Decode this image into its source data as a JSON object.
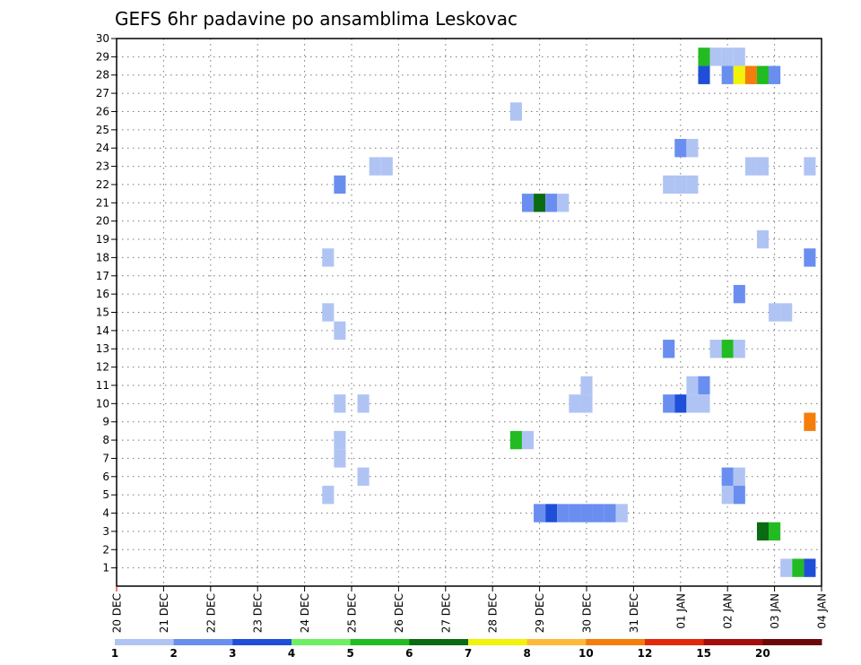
{
  "chart_data": {
    "type": "heatmap",
    "title": "GEFS 6hr padavine po ansamblima Leskovac",
    "xlabel": "",
    "ylabel": "",
    "x_tick_labels": [
      "20 DEC",
      "21 DEC",
      "22 DEC",
      "23 DEC",
      "24 DEC",
      "25 DEC",
      "26 DEC",
      "27 DEC",
      "28 DEC",
      "29 DEC",
      "30 DEC",
      "31 DEC",
      "01 JAN",
      "02 JAN",
      "03 JAN",
      "04 JAN"
    ],
    "y_tick_labels": [
      "1",
      "2",
      "3",
      "4",
      "5",
      "6",
      "7",
      "8",
      "9",
      "10",
      "11",
      "12",
      "13",
      "14",
      "15",
      "16",
      "17",
      "18",
      "19",
      "20",
      "21",
      "22",
      "23",
      "24",
      "25",
      "26",
      "27",
      "28",
      "29",
      "30"
    ],
    "xlim": [
      "20 DEC",
      "04 JAN"
    ],
    "ylim": [
      0,
      30
    ],
    "grid": true,
    "time_step": "6hr",
    "colorbar": {
      "labels": [
        "1",
        "2",
        "3",
        "4",
        "5",
        "6",
        "7",
        "8",
        "10",
        "12",
        "15",
        "20"
      ],
      "colors": [
        "#b0c4f4",
        "#6a8ef0",
        "#1f4ed8",
        "#6cf062",
        "#22bb22",
        "#0b6b12",
        "#f2f20a",
        "#fcb93a",
        "#f47d0c",
        "#e22a0a",
        "#a50c0c",
        "#6b0808"
      ],
      "position": "bottom"
    },
    "cells": [
      {
        "member": 29,
        "time": "01 JAN 12Z",
        "value": 5
      },
      {
        "member": 29,
        "time": "01 JAN 18Z",
        "value": 1
      },
      {
        "member": 29,
        "time": "02 JAN 00Z",
        "value": 1
      },
      {
        "member": 29,
        "time": "02 JAN 06Z",
        "value": 1
      },
      {
        "member": 28,
        "time": "01 JAN 12Z",
        "value": 3
      },
      {
        "member": 28,
        "time": "02 JAN 00Z",
        "value": 2
      },
      {
        "member": 28,
        "time": "02 JAN 06Z",
        "value": 7
      },
      {
        "member": 28,
        "time": "02 JAN 12Z",
        "value": 10
      },
      {
        "member": 28,
        "time": "02 JAN 18Z",
        "value": 5
      },
      {
        "member": 28,
        "time": "03 JAN 00Z",
        "value": 2
      },
      {
        "member": 26,
        "time": "28 DEC 12Z",
        "value": 1
      },
      {
        "member": 24,
        "time": "01 JAN 00Z",
        "value": 2
      },
      {
        "member": 24,
        "time": "01 JAN 06Z",
        "value": 1
      },
      {
        "member": 23,
        "time": "25 DEC 12Z",
        "value": 1
      },
      {
        "member": 23,
        "time": "25 DEC 18Z",
        "value": 1
      },
      {
        "member": 23,
        "time": "02 JAN 12Z",
        "value": 1
      },
      {
        "member": 23,
        "time": "02 JAN 18Z",
        "value": 1
      },
      {
        "member": 23,
        "time": "03 JAN 18Z",
        "value": 1
      },
      {
        "member": 22,
        "time": "24 DEC 18Z",
        "value": 2
      },
      {
        "member": 22,
        "time": "31 DEC 18Z",
        "value": 1
      },
      {
        "member": 22,
        "time": "01 JAN 00Z",
        "value": 1
      },
      {
        "member": 22,
        "time": "01 JAN 06Z",
        "value": 1
      },
      {
        "member": 21,
        "time": "28 DEC 18Z",
        "value": 2
      },
      {
        "member": 21,
        "time": "29 DEC 00Z",
        "value": 6
      },
      {
        "member": 21,
        "time": "29 DEC 06Z",
        "value": 2
      },
      {
        "member": 21,
        "time": "29 DEC 12Z",
        "value": 1
      },
      {
        "member": 19,
        "time": "02 JAN 18Z",
        "value": 1
      },
      {
        "member": 18,
        "time": "24 DEC 12Z",
        "value": 1
      },
      {
        "member": 18,
        "time": "03 JAN 18Z",
        "value": 2
      },
      {
        "member": 16,
        "time": "02 JAN 06Z",
        "value": 2
      },
      {
        "member": 15,
        "time": "24 DEC 12Z",
        "value": 1
      },
      {
        "member": 15,
        "time": "03 JAN 00Z",
        "value": 1
      },
      {
        "member": 15,
        "time": "03 JAN 06Z",
        "value": 1
      },
      {
        "member": 14,
        "time": "24 DEC 18Z",
        "value": 1
      },
      {
        "member": 13,
        "time": "31 DEC 18Z",
        "value": 2
      },
      {
        "member": 13,
        "time": "01 JAN 18Z",
        "value": 1
      },
      {
        "member": 13,
        "time": "02 JAN 00Z",
        "value": 5
      },
      {
        "member": 13,
        "time": "02 JAN 06Z",
        "value": 1
      },
      {
        "member": 11,
        "time": "30 DEC 00Z",
        "value": 1
      },
      {
        "member": 11,
        "time": "01 JAN 06Z",
        "value": 1
      },
      {
        "member": 11,
        "time": "01 JAN 12Z",
        "value": 2
      },
      {
        "member": 10,
        "time": "24 DEC 18Z",
        "value": 1
      },
      {
        "member": 10,
        "time": "25 DEC 06Z",
        "value": 1
      },
      {
        "member": 10,
        "time": "29 DEC 18Z",
        "value": 1
      },
      {
        "member": 10,
        "time": "30 DEC 00Z",
        "value": 1
      },
      {
        "member": 10,
        "time": "31 DEC 18Z",
        "value": 2
      },
      {
        "member": 10,
        "time": "01 JAN 00Z",
        "value": 3
      },
      {
        "member": 10,
        "time": "01 JAN 06Z",
        "value": 1
      },
      {
        "member": 10,
        "time": "01 JAN 12Z",
        "value": 1
      },
      {
        "member": 9,
        "time": "03 JAN 18Z",
        "value": 10
      },
      {
        "member": 8,
        "time": "24 DEC 18Z",
        "value": 1
      },
      {
        "member": 8,
        "time": "28 DEC 12Z",
        "value": 5
      },
      {
        "member": 8,
        "time": "28 DEC 18Z",
        "value": 1
      },
      {
        "member": 7,
        "time": "24 DEC 18Z",
        "value": 1
      },
      {
        "member": 6,
        "time": "25 DEC 06Z",
        "value": 1
      },
      {
        "member": 6,
        "time": "02 JAN 00Z",
        "value": 2
      },
      {
        "member": 6,
        "time": "02 JAN 06Z",
        "value": 1
      },
      {
        "member": 5,
        "time": "24 DEC 12Z",
        "value": 1
      },
      {
        "member": 5,
        "time": "02 JAN 00Z",
        "value": 1
      },
      {
        "member": 5,
        "time": "02 JAN 06Z",
        "value": 2
      },
      {
        "member": 4,
        "time": "29 DEC 00Z",
        "value": 2
      },
      {
        "member": 4,
        "time": "29 DEC 06Z",
        "value": 3
      },
      {
        "member": 4,
        "time": "29 DEC 12Z",
        "value": 2
      },
      {
        "member": 4,
        "time": "29 DEC 18Z",
        "value": 2
      },
      {
        "member": 4,
        "time": "30 DEC 00Z",
        "value": 2
      },
      {
        "member": 4,
        "time": "30 DEC 06Z",
        "value": 2
      },
      {
        "member": 4,
        "time": "30 DEC 12Z",
        "value": 2
      },
      {
        "member": 4,
        "time": "30 DEC 18Z",
        "value": 1
      },
      {
        "member": 3,
        "time": "02 JAN 18Z",
        "value": 6
      },
      {
        "member": 3,
        "time": "03 JAN 00Z",
        "value": 5
      },
      {
        "member": 1,
        "time": "03 JAN 06Z",
        "value": 1
      },
      {
        "member": 1,
        "time": "03 JAN 12Z",
        "value": 5
      },
      {
        "member": 1,
        "time": "03 JAN 18Z",
        "value": 3
      }
    ]
  }
}
